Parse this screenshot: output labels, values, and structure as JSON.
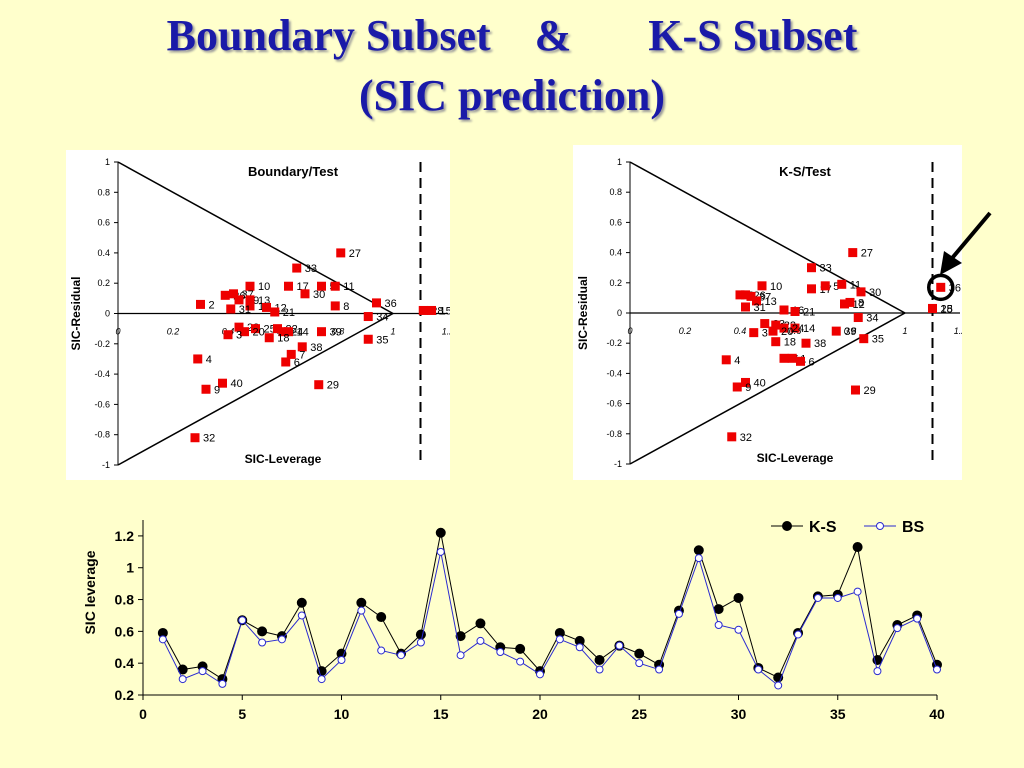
{
  "title": {
    "line1": "Boundary Subset    &       K-S Subset",
    "line2": "(SIC prediction)"
  },
  "colors": {
    "background": "#ffffcc",
    "title": "#1a1aa8",
    "marker": "#ee0000",
    "ks_series": "#000000",
    "bs_series": "#2a2ad0",
    "leverage_panel_bg": "#ffffcc"
  },
  "chart_data": [
    {
      "id": "boundary",
      "type": "scatter",
      "title": "Boundary/Test",
      "xlabel": "SIC-Leverage",
      "ylabel": "SIC-Residual",
      "xlim": [
        0,
        1.2
      ],
      "ylim": [
        -1,
        1
      ],
      "x_ticks": [
        "0",
        "0.2",
        "0.4",
        "0.6",
        "0.8",
        "1",
        "1.2"
      ],
      "y_ticks": [
        "1",
        "0.8",
        "0.6",
        "0.4",
        "0.2",
        "0",
        "-0.2",
        "-0.4",
        "-0.6",
        "-0.8",
        "-1"
      ],
      "triangle_apex_x": 1.0,
      "threshold_x": 1.1,
      "points": [
        {
          "label": "27",
          "x": 0.81,
          "y": 0.4
        },
        {
          "label": "33",
          "x": 0.65,
          "y": 0.3
        },
        {
          "label": "10",
          "x": 0.48,
          "y": 0.18
        },
        {
          "label": "17",
          "x": 0.62,
          "y": 0.18
        },
        {
          "label": "5",
          "x": 0.74,
          "y": 0.18
        },
        {
          "label": "11",
          "x": 0.79,
          "y": 0.18
        },
        {
          "label": "30",
          "x": 0.68,
          "y": 0.13
        },
        {
          "label": "28",
          "x": 1.11,
          "y": 0.02
        },
        {
          "label": "15",
          "x": 1.14,
          "y": 0.02
        },
        {
          "label": "36",
          "x": 0.94,
          "y": 0.07
        },
        {
          "label": "8",
          "x": 0.79,
          "y": 0.05
        },
        {
          "label": "34",
          "x": 0.91,
          "y": -0.02
        },
        {
          "label": "2",
          "x": 0.3,
          "y": 0.06
        },
        {
          "label": "26",
          "x": 0.39,
          "y": 0.12
        },
        {
          "label": "37",
          "x": 0.42,
          "y": 0.13
        },
        {
          "label": "19",
          "x": 0.44,
          "y": 0.09
        },
        {
          "label": "13",
          "x": 0.48,
          "y": 0.09
        },
        {
          "label": "16",
          "x": 0.48,
          "y": 0.05
        },
        {
          "label": "31",
          "x": 0.41,
          "y": 0.03
        },
        {
          "label": "12",
          "x": 0.54,
          "y": 0.04
        },
        {
          "label": "21",
          "x": 0.57,
          "y": 0.01
        },
        {
          "label": "23",
          "x": 0.44,
          "y": -0.09
        },
        {
          "label": "25",
          "x": 0.5,
          "y": -0.1
        },
        {
          "label": "22",
          "x": 0.58,
          "y": -0.1
        },
        {
          "label": "24",
          "x": 0.6,
          "y": -0.12
        },
        {
          "label": "14",
          "x": 0.62,
          "y": -0.12
        },
        {
          "label": "20",
          "x": 0.46,
          "y": -0.12
        },
        {
          "label": "3",
          "x": 0.4,
          "y": -0.14
        },
        {
          "label": "18",
          "x": 0.55,
          "y": -0.16
        },
        {
          "label": "39",
          "x": 0.74,
          "y": -0.12
        },
        {
          "label": "38",
          "x": 0.67,
          "y": -0.22
        },
        {
          "label": "35",
          "x": 0.91,
          "y": -0.17
        },
        {
          "label": "7",
          "x": 0.63,
          "y": -0.27
        },
        {
          "label": "6",
          "x": 0.61,
          "y": -0.32
        },
        {
          "label": "4",
          "x": 0.29,
          "y": -0.3
        },
        {
          "label": "40",
          "x": 0.38,
          "y": -0.46
        },
        {
          "label": "9",
          "x": 0.32,
          "y": -0.5
        },
        {
          "label": "29",
          "x": 0.73,
          "y": -0.47
        },
        {
          "label": "32",
          "x": 0.28,
          "y": -0.82
        }
      ]
    },
    {
      "id": "ks",
      "type": "scatter",
      "title": "K-S/Test",
      "xlabel": "SIC-Leverage",
      "ylabel": "SIC-Residual",
      "xlim": [
        0,
        1.2
      ],
      "ylim": [
        -1,
        1
      ],
      "x_ticks": [
        "0",
        "0.2",
        "0.4",
        "0.6",
        "0.8",
        "1",
        "1.2"
      ],
      "y_ticks": [
        "1",
        "0.8",
        "0.6",
        "0.4",
        "0.2",
        "0",
        "-0.2",
        "-0.4",
        "-0.6",
        "-0.8",
        "-1"
      ],
      "triangle_apex_x": 1.0,
      "threshold_x": 1.1,
      "highlight_point": "36",
      "points": [
        {
          "label": "27",
          "x": 0.81,
          "y": 0.4
        },
        {
          "label": "33",
          "x": 0.66,
          "y": 0.3
        },
        {
          "label": "10",
          "x": 0.48,
          "y": 0.18
        },
        {
          "label": "17",
          "x": 0.66,
          "y": 0.16
        },
        {
          "label": "5",
          "x": 0.71,
          "y": 0.18
        },
        {
          "label": "11",
          "x": 0.77,
          "y": 0.19
        },
        {
          "label": "30",
          "x": 0.84,
          "y": 0.14
        },
        {
          "label": "12",
          "x": 0.78,
          "y": 0.06
        },
        {
          "label": "8",
          "x": 0.8,
          "y": 0.07
        },
        {
          "label": "36",
          "x": 1.13,
          "y": 0.17
        },
        {
          "label": "28",
          "x": 1.1,
          "y": 0.03
        },
        {
          "label": "15",
          "x": 1.1,
          "y": 0.03
        },
        {
          "label": "34",
          "x": 0.83,
          "y": -0.03
        },
        {
          "label": "35",
          "x": 0.85,
          "y": -0.17
        },
        {
          "label": "29",
          "x": 0.82,
          "y": -0.51
        },
        {
          "label": "2",
          "x": 0.4,
          "y": 0.12
        },
        {
          "label": "26",
          "x": 0.42,
          "y": 0.12
        },
        {
          "label": "37",
          "x": 0.44,
          "y": 0.11
        },
        {
          "label": "13",
          "x": 0.46,
          "y": 0.08
        },
        {
          "label": "31",
          "x": 0.42,
          "y": 0.04
        },
        {
          "label": "16",
          "x": 0.56,
          "y": 0.02
        },
        {
          "label": "21",
          "x": 0.6,
          "y": 0.01
        },
        {
          "label": "23",
          "x": 0.49,
          "y": -0.07
        },
        {
          "label": "22",
          "x": 0.53,
          "y": -0.08
        },
        {
          "label": "14",
          "x": 0.6,
          "y": -0.1
        },
        {
          "label": "24",
          "x": 0.56,
          "y": -0.1
        },
        {
          "label": "20",
          "x": 0.52,
          "y": -0.12
        },
        {
          "label": "3",
          "x": 0.45,
          "y": -0.13
        },
        {
          "label": "39",
          "x": 0.75,
          "y": -0.12
        },
        {
          "label": "18",
          "x": 0.53,
          "y": -0.19
        },
        {
          "label": "38",
          "x": 0.64,
          "y": -0.2
        },
        {
          "label": "7",
          "x": 0.56,
          "y": -0.3
        },
        {
          "label": "1",
          "x": 0.59,
          "y": -0.3
        },
        {
          "label": "6",
          "x": 0.62,
          "y": -0.32
        },
        {
          "label": "4",
          "x": 0.35,
          "y": -0.31
        },
        {
          "label": "40",
          "x": 0.42,
          "y": -0.46
        },
        {
          "label": "9",
          "x": 0.39,
          "y": -0.49
        },
        {
          "label": "32",
          "x": 0.37,
          "y": -0.82
        }
      ]
    },
    {
      "id": "leverage",
      "type": "line",
      "ylabel": "SIC leverage",
      "xlim": [
        0,
        40
      ],
      "ylim": [
        0.2,
        1.3
      ],
      "x_ticks": [
        "0",
        "5",
        "10",
        "15",
        "20",
        "25",
        "30",
        "35",
        "40"
      ],
      "y_ticks": [
        "0.2",
        "0.4",
        "0.6",
        "0.8",
        "1",
        "1.2"
      ],
      "legend_position": "top-right",
      "x": [
        1,
        2,
        3,
        4,
        5,
        6,
        7,
        8,
        9,
        10,
        11,
        12,
        13,
        14,
        15,
        16,
        17,
        18,
        19,
        20,
        21,
        22,
        23,
        24,
        25,
        26,
        27,
        28,
        29,
        30,
        31,
        32,
        33,
        34,
        35,
        36,
        37,
        38,
        39,
        40
      ],
      "series": [
        {
          "name": "K-S",
          "values": [
            0.59,
            0.36,
            0.38,
            0.3,
            0.67,
            0.6,
            0.57,
            0.78,
            0.35,
            0.46,
            0.78,
            0.69,
            0.46,
            0.58,
            1.22,
            0.57,
            0.65,
            0.5,
            0.49,
            0.35,
            0.59,
            0.54,
            0.42,
            0.51,
            0.46,
            0.39,
            0.73,
            1.11,
            0.74,
            0.81,
            0.37,
            0.31,
            0.59,
            0.82,
            0.83,
            1.13,
            0.42,
            0.64,
            0.7,
            0.39
          ]
        },
        {
          "name": "BS",
          "values": [
            0.55,
            0.3,
            0.35,
            0.27,
            0.67,
            0.53,
            0.55,
            0.7,
            0.3,
            0.42,
            0.73,
            0.48,
            0.45,
            0.53,
            1.1,
            0.45,
            0.54,
            0.47,
            0.41,
            0.33,
            0.55,
            0.5,
            0.36,
            0.51,
            0.4,
            0.36,
            0.71,
            1.06,
            0.64,
            0.61,
            0.36,
            0.26,
            0.58,
            0.81,
            0.81,
            0.85,
            0.35,
            0.62,
            0.68,
            0.36
          ]
        }
      ]
    }
  ]
}
